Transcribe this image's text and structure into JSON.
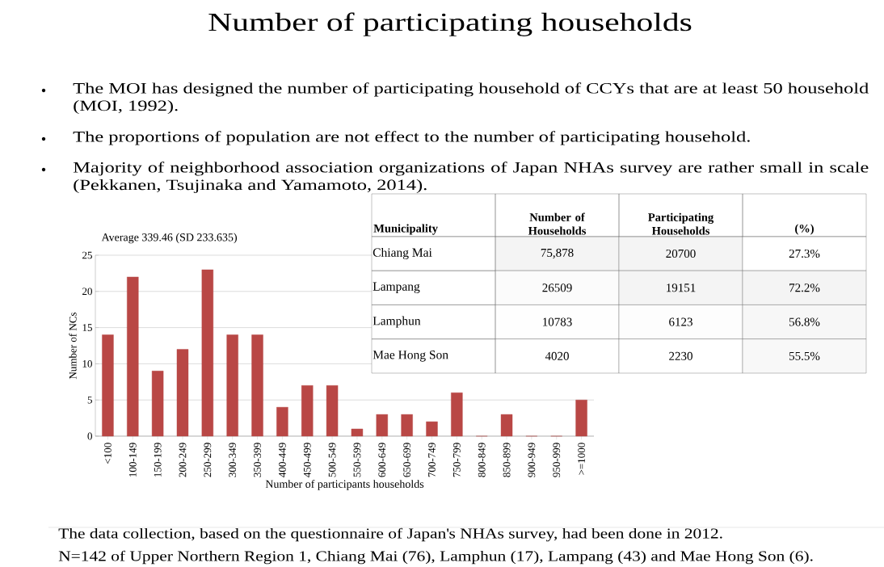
{
  "chart_data": [
    {
      "type": "bar",
      "title": "Number of participating households",
      "subtitle": "Average 339.46 (SD 233.635)",
      "xlabel": "Number of participants households",
      "ylabel": "Number of NCs",
      "categories": [
        "<100",
        "100-149",
        "150-199",
        "200-249",
        "250-299",
        "300-349",
        "350-399",
        "400-449",
        "450-499",
        "500-549",
        "550-599",
        "600-649",
        "650-699",
        "700-749",
        "750-799",
        "800-849",
        "850-899",
        "900-949",
        "950-999",
        ">=1000"
      ],
      "values": [
        14,
        22,
        9,
        12,
        23,
        14,
        14,
        4,
        7,
        7,
        1,
        3,
        3,
        2,
        6,
        0,
        3,
        0,
        0,
        5
      ],
      "color": "#b94745",
      "ylim": [
        0,
        25
      ],
      "yticks": [
        0,
        5,
        10,
        15,
        20,
        25
      ],
      "grid": "y",
      "annotations": [
        "The MOI has designed the number of participating household of CCYs that are at least 50 household (MOI, 1992).",
        "The proportions of population are not effect to the number of participating household.",
        "Majority of neighborhood association organizations of Japan NHAs survey are rather small in scale (Pekkanen, Tsujinaka and Yamamoto, 2014).",
        "The data collection, based on the questionnaire of Japan's NHAs survey, had been done in 2012.",
        "N=142 of Upper Northern Region 1, Chiang Mai (76), Lamphun (17), Lampang (43) and Mae Hong Son (6)."
      ]
    },
    {
      "type": "heatmap",
      "ylabel": "Municipality",
      "categories": [
        "Number of Households",
        "Participating Households",
        "(%)"
      ],
      "y_categories": [
        "Chiang Mai",
        "Lampang",
        "Lamphun",
        "Mae Hong Son"
      ],
      "cells": [
        [
          75878,
          20700,
          27.3
        ],
        [
          26509,
          19151,
          72.2
        ],
        [
          10783,
          6123,
          56.8
        ],
        [
          4020,
          2230,
          55.5
        ]
      ],
      "cell_labels": [
        [
          "75,878",
          "20700",
          "27.3%"
        ],
        [
          "26509",
          "19151",
          "72.2%"
        ],
        [
          "10783",
          "6123",
          "56.8%"
        ],
        [
          "4020",
          "2230",
          "55.5%"
        ]
      ]
    }
  ]
}
